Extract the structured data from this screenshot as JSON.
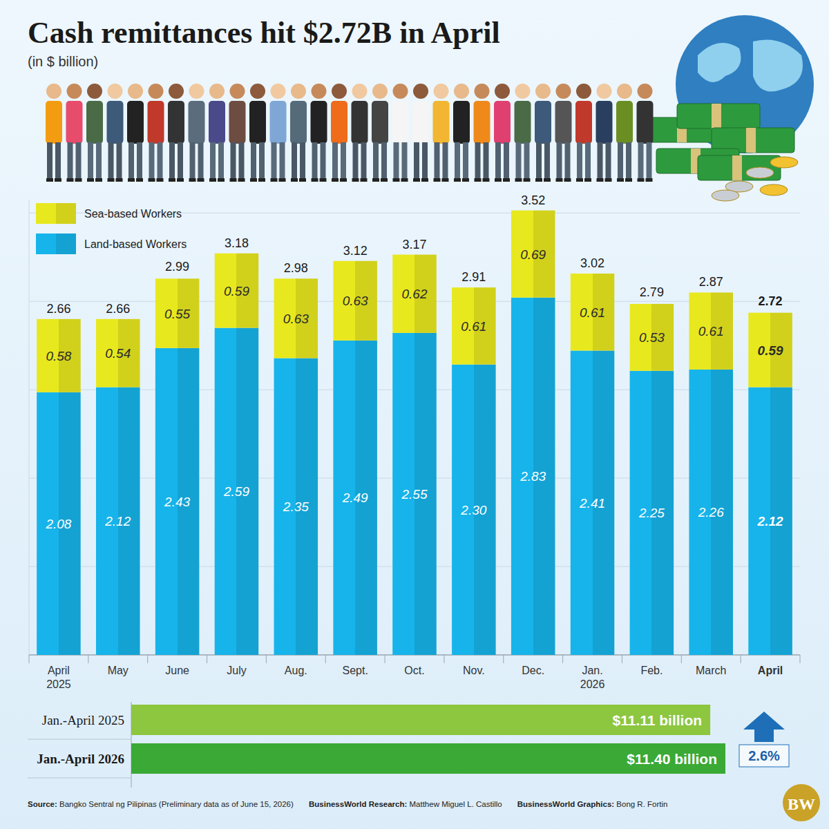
{
  "title": "Cash remittances hit $2.72B in April",
  "subtitle": "(in $ billion)",
  "chart_data": [
    {
      "type": "bar",
      "stacked": true,
      "categories": [
        "April 2025",
        "May",
        "June",
        "July",
        "Aug.",
        "Sept.",
        "Oct.",
        "Nov.",
        "Dec.",
        "Jan. 2026",
        "Feb.",
        "March",
        "April"
      ],
      "series": [
        {
          "name": "Land-based Workers",
          "color": "#16b4ea",
          "values": [
            2.08,
            2.12,
            2.43,
            2.59,
            2.35,
            2.49,
            2.55,
            2.3,
            2.83,
            2.41,
            2.25,
            2.26,
            2.12
          ],
          "value_labels": [
            "2.08",
            "2.12",
            "2.43",
            "2.59",
            "2.35",
            "2.49",
            "2.55",
            "2.30",
            "2.83",
            "2.41",
            "2.25",
            "2.26",
            "2.12"
          ]
        },
        {
          "name": "Sea-based Workers",
          "color": "#e8e81e",
          "values": [
            0.58,
            0.54,
            0.55,
            0.59,
            0.63,
            0.63,
            0.62,
            0.61,
            0.69,
            0.61,
            0.53,
            0.61,
            0.59
          ]
        }
      ],
      "totals": [
        2.66,
        2.66,
        2.99,
        3.18,
        2.98,
        3.12,
        3.17,
        2.91,
        3.52,
        3.02,
        2.79,
        2.87,
        2.72
      ],
      "ylim": [
        0,
        3.6
      ],
      "yticks": [
        0,
        0.7,
        1.4,
        2.1,
        2.8,
        3.5
      ],
      "grid": true,
      "tick_labels": "x",
      "data_labels": true,
      "legend": "upper left"
    },
    {
      "type": "bar",
      "orientation": "horizontal",
      "categories": [
        "Jan.-April 2025",
        "Jan.-April 2026"
      ],
      "values": [
        11.11,
        11.4
      ],
      "value_labels": [
        "$11.11 billion",
        "$11.40 billion"
      ],
      "colors": [
        "#8dc63f",
        "#3aa935"
      ],
      "xlim": [
        0,
        11.4
      ],
      "tick_labels": false,
      "data_labels": true,
      "change": {
        "value": 2.6,
        "label": "2.6%"
      }
    }
  ],
  "footer": [
    {
      "label": "Source:",
      "text": "Bangko Sentral ng Pilipinas (Preliminary data as of June 15, 2026)"
    },
    {
      "label": "BusinessWorld Research:",
      "text": "Matthew Miguel L. Castillo"
    },
    {
      "label": "BusinessWorld Graphics:",
      "text": "Bong R. Fortin"
    }
  ],
  "logo": "BW"
}
